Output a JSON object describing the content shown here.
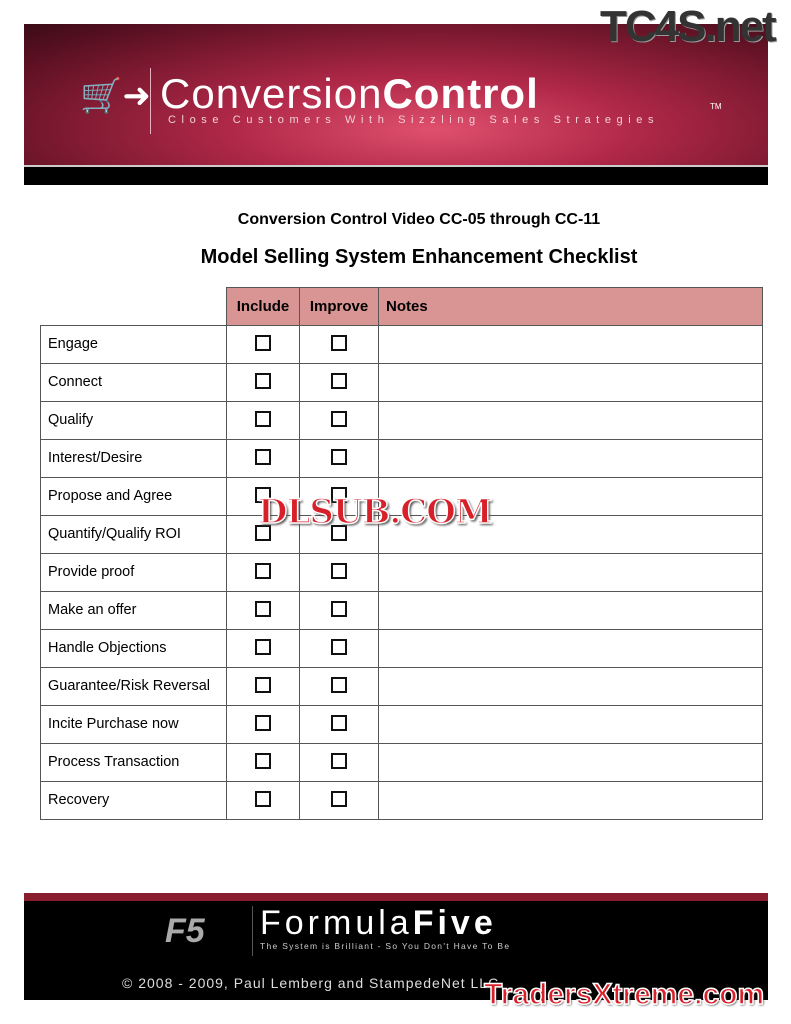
{
  "header": {
    "brand_light": "Conversion",
    "brand_bold": "Control",
    "tm": "TM",
    "tagline": "Close Customers With Sizzling Sales Strategies",
    "cart_icon": "shopping-cart-arrow"
  },
  "watermarks": {
    "top": "TC4S.net",
    "middle": "DLSUB.COM",
    "bottom": "TradersXtreme.com"
  },
  "subtitle": "Conversion Control Video CC-05 through CC-11",
  "title": "Model Selling System Enhancement Checklist",
  "table": {
    "headers": [
      "Include",
      "Improve",
      "Notes"
    ],
    "header_color": "#d99594",
    "rows": [
      "Engage",
      "Connect",
      "Qualify",
      "Interest/Desire",
      "Propose and Agree",
      "Quantify/Qualify ROI",
      "Provide proof",
      "Make an offer",
      "Handle Objections",
      "Guarantee/Risk Reversal",
      "Incite Purchase now",
      "Process Transaction",
      "Recovery"
    ]
  },
  "footer": {
    "logo": "F5",
    "brand_light": "Formula",
    "brand_bold": "Five",
    "tagline": "The System is Brilliant - So You Don't Have To Be",
    "copyright": "© 2008 - 2009, Paul Lemberg and StampedeNet LLC"
  }
}
